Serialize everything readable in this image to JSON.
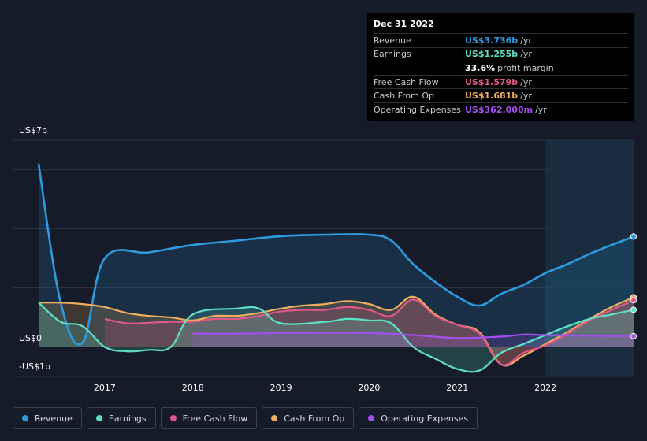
{
  "tooltip": {
    "date": "Dec 31 2022",
    "rows": [
      {
        "label": "Revenue",
        "value": "US$3.736b",
        "unit": "/yr",
        "color": "#2e9be0"
      },
      {
        "label": "Earnings",
        "value": "US$1.255b",
        "unit": "/yr",
        "color": "#5ee0c8"
      },
      {
        "label": "",
        "value": "33.6%",
        "unit": "profit margin",
        "color": "#ffffff"
      },
      {
        "label": "Free Cash Flow",
        "value": "US$1.579b",
        "unit": "/yr",
        "color": "#e0588a"
      },
      {
        "label": "Cash From Op",
        "value": "US$1.681b",
        "unit": "/yr",
        "color": "#f0ad5c"
      },
      {
        "label": "Operating Expenses",
        "value": "US$362.000m",
        "unit": "/yr",
        "color": "#a450f0"
      }
    ]
  },
  "legend": [
    {
      "label": "Revenue",
      "color": "#2e9be0"
    },
    {
      "label": "Earnings",
      "color": "#5ee0c8"
    },
    {
      "label": "Free Cash Flow",
      "color": "#e0588a"
    },
    {
      "label": "Cash From Op",
      "color": "#f0ad5c"
    },
    {
      "label": "Operating Expenses",
      "color": "#a450f0"
    }
  ],
  "chart_data": {
    "type": "line",
    "title": "",
    "xlabel": "",
    "ylabel": "",
    "y_axis_labels": {
      "top": "US$7b",
      "zero": "US$0",
      "bottom": "-US$1b"
    },
    "ylim": [
      -1,
      7
    ],
    "xlim": [
      2016.25,
      2023.0
    ],
    "x_ticks": [
      "2017",
      "2018",
      "2019",
      "2020",
      "2021",
      "2022"
    ],
    "x_tick_values": [
      2017,
      2018,
      2019,
      2020,
      2021,
      2022
    ],
    "forecast_region_start": 2022.0,
    "grid": true,
    "legend_placement": "bottom",
    "series": [
      {
        "name": "Revenue",
        "color": "#2e9be0",
        "x": [
          2016.25,
          2016.5,
          2016.75,
          2017.0,
          2017.5,
          2018.0,
          2018.5,
          2019.0,
          2019.5,
          2020.0,
          2020.25,
          2020.5,
          2020.75,
          2021.0,
          2021.25,
          2021.5,
          2021.75,
          2022.0,
          2022.25,
          2022.5,
          2022.75,
          2023.0
        ],
        "y": [
          6.2,
          1.5,
          0.15,
          3.0,
          3.2,
          3.45,
          3.6,
          3.75,
          3.8,
          3.8,
          3.6,
          2.8,
          2.2,
          1.7,
          1.4,
          1.8,
          2.1,
          2.5,
          2.8,
          3.15,
          3.45,
          3.736
        ]
      },
      {
        "name": "Earnings",
        "color": "#5ee0c8",
        "x": [
          2016.25,
          2016.5,
          2016.75,
          2017.0,
          2017.25,
          2017.5,
          2017.75,
          2018.0,
          2018.5,
          2018.75,
          2019.0,
          2019.5,
          2019.75,
          2020.0,
          2020.25,
          2020.5,
          2020.75,
          2021.0,
          2021.25,
          2021.5,
          2021.75,
          2022.0,
          2022.25,
          2022.5,
          2022.75,
          2023.0
        ],
        "y": [
          1.5,
          0.85,
          0.7,
          0.0,
          -0.15,
          -0.1,
          0.0,
          1.1,
          1.3,
          1.3,
          0.8,
          0.85,
          0.95,
          0.9,
          0.8,
          0.0,
          -0.4,
          -0.75,
          -0.8,
          -0.2,
          0.1,
          0.4,
          0.7,
          0.95,
          1.1,
          1.255
        ]
      },
      {
        "name": "Free Cash Flow",
        "color": "#e0588a",
        "x": [
          2017.0,
          2017.25,
          2017.5,
          2017.75,
          2018.0,
          2018.25,
          2018.5,
          2018.75,
          2019.0,
          2019.25,
          2019.5,
          2019.75,
          2020.0,
          2020.25,
          2020.5,
          2020.75,
          2021.0,
          2021.25,
          2021.5,
          2021.75,
          2022.0,
          2022.25,
          2022.5,
          2022.75,
          2023.0
        ],
        "y": [
          0.95,
          0.8,
          0.82,
          0.85,
          0.85,
          0.95,
          0.95,
          1.05,
          1.2,
          1.25,
          1.25,
          1.35,
          1.25,
          1.05,
          1.6,
          1.05,
          0.75,
          0.45,
          -0.6,
          -0.2,
          0.05,
          0.45,
          0.9,
          1.25,
          1.579
        ]
      },
      {
        "name": "Cash From Op",
        "color": "#f0ad5c",
        "x": [
          2016.25,
          2016.5,
          2016.75,
          2017.0,
          2017.25,
          2017.5,
          2017.75,
          2018.0,
          2018.25,
          2018.5,
          2018.75,
          2019.0,
          2019.25,
          2019.5,
          2019.75,
          2020.0,
          2020.25,
          2020.5,
          2020.75,
          2021.0,
          2021.25,
          2021.5,
          2021.75,
          2022.0,
          2022.25,
          2022.5,
          2022.75,
          2023.0
        ],
        "y": [
          1.5,
          1.5,
          1.45,
          1.35,
          1.15,
          1.05,
          1.0,
          0.9,
          1.05,
          1.05,
          1.15,
          1.3,
          1.4,
          1.45,
          1.55,
          1.45,
          1.25,
          1.7,
          1.1,
          0.75,
          0.5,
          -0.6,
          -0.3,
          0.1,
          0.5,
          0.95,
          1.35,
          1.681
        ]
      },
      {
        "name": "Operating Expenses",
        "color": "#a450f0",
        "x": [
          2018.0,
          2018.5,
          2019.0,
          2019.5,
          2020.0,
          2020.5,
          2021.0,
          2021.5,
          2021.75,
          2022.0,
          2022.5,
          2023.0
        ],
        "y": [
          0.45,
          0.45,
          0.47,
          0.48,
          0.47,
          0.4,
          0.3,
          0.35,
          0.42,
          0.4,
          0.38,
          0.362
        ]
      }
    ]
  }
}
